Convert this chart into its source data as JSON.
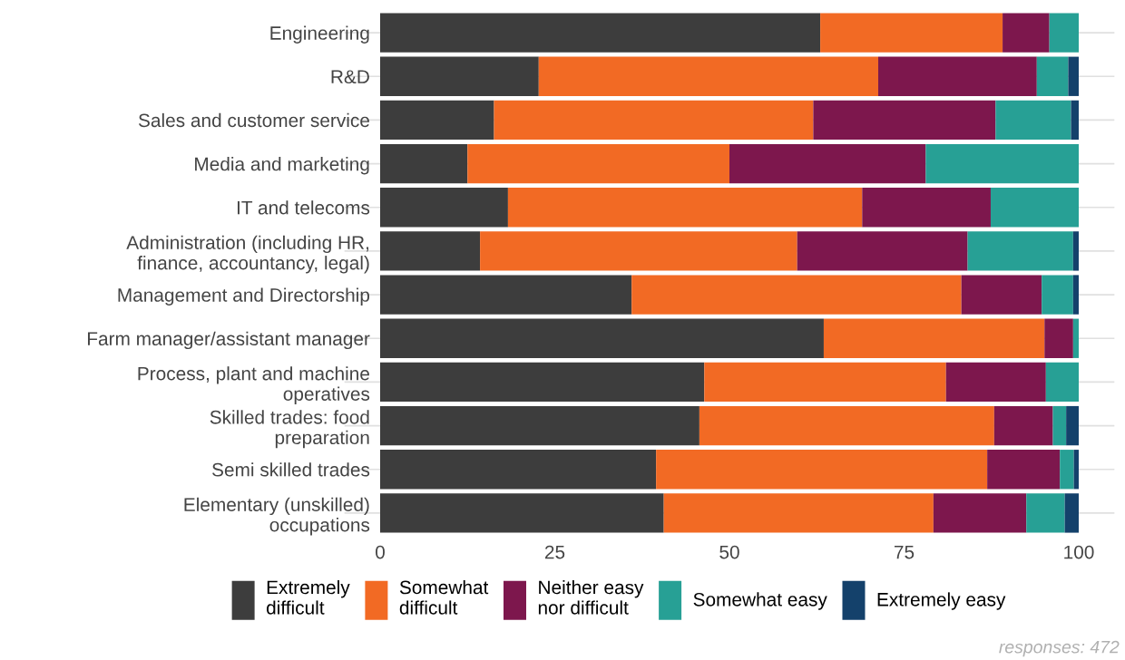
{
  "chart_data": {
    "type": "bar",
    "orientation": "horizontal",
    "stacked": true,
    "categories": [
      "Engineering",
      "R&D",
      "Sales and customer service",
      "Media and marketing",
      "IT and telecoms",
      "Administration (including HR,\nfinance, accountancy, legal)",
      "Management and Directorship",
      "Farm manager/assistant manager",
      "Process, plant and machine\noperatives",
      "Skilled trades: food\npreparation",
      "Semi skilled trades",
      "Elementary (unskilled)\noccupations"
    ],
    "series": [
      {
        "name": "Extremely\ndifficult",
        "color": "#3d3d3d",
        "values": [
          63.0,
          22.7,
          16.3,
          12.5,
          18.3,
          14.3,
          36.0,
          63.5,
          46.4,
          45.7,
          39.5,
          40.6
        ]
      },
      {
        "name": "Somewhat\ndifficult",
        "color": "#f26a24",
        "values": [
          26.1,
          48.6,
          45.7,
          37.5,
          50.7,
          45.4,
          47.2,
          31.6,
          34.6,
          42.2,
          47.4,
          38.6
        ]
      },
      {
        "name": "Neither easy\nnor difficult",
        "color": "#7d174d",
        "values": [
          6.7,
          22.7,
          26.1,
          28.1,
          18.4,
          24.4,
          11.5,
          4.1,
          14.3,
          8.4,
          10.4,
          13.3
        ]
      },
      {
        "name": "Somewhat easy",
        "color": "#27a095",
        "values": [
          4.2,
          4.5,
          10.8,
          21.9,
          12.6,
          15.1,
          4.5,
          0.8,
          4.7,
          1.9,
          2.0,
          5.5
        ]
      },
      {
        "name": "Extremely easy",
        "color": "#14416b",
        "values": [
          0,
          1.5,
          1.1,
          0,
          0,
          0.8,
          0.8,
          0,
          0,
          1.8,
          0.7,
          2.1
        ]
      }
    ],
    "xlim": [
      0,
      100
    ],
    "xticks": [
      0,
      25,
      50,
      75,
      100
    ],
    "grid": "y",
    "legend": "bottom",
    "annotations": [
      "responses: 472"
    ]
  }
}
